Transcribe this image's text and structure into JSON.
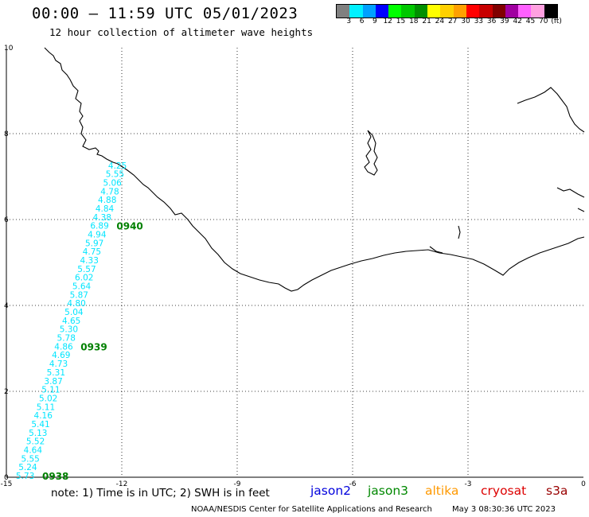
{
  "header": {
    "title": "00:00 – 11:59 UTC 05/01/2023",
    "subtitle": "12 hour collection of altimeter wave heights"
  },
  "legend": {
    "colors": [
      "#808080",
      "#00f0ff",
      "#00a0ff",
      "#0000ff",
      "#00ff00",
      "#00c800",
      "#009000",
      "#ffff00",
      "#ffd000",
      "#ffa000",
      "#ff0000",
      "#c80000",
      "#800000",
      "#a000a0",
      "#ff60ff",
      "#ffa0e0",
      "#000000"
    ],
    "ticks": [
      "3",
      "6",
      "9",
      "12",
      "15",
      "18",
      "21",
      "24",
      "27",
      "30",
      "33",
      "36",
      "39",
      "42",
      "45",
      "70",
      "(ft)"
    ]
  },
  "axes": {
    "x_ticks": [
      "-15",
      "-12",
      "-9",
      "-6",
      "-3",
      "0"
    ],
    "y_ticks": [
      "0",
      "2",
      "4",
      "6",
      "8",
      "10"
    ],
    "xlim": [
      -15,
      0
    ],
    "ylim": [
      0,
      10
    ]
  },
  "track": {
    "color": "#00e5ff",
    "values": [
      "5.73",
      "5.24",
      "5.55",
      "4.64",
      "5.52",
      "5.13",
      "5.41",
      "4.16",
      "5.11",
      "5.02",
      "5.11",
      "3.87",
      "5.31",
      "4.73",
      "4.69",
      "4.86",
      "5.78",
      "5.30",
      "4.65",
      "5.04",
      "4.80",
      "5.87",
      "5.64",
      "6.02",
      "5.57",
      "4.33",
      "4.75",
      "5.97",
      "4.94",
      "6.89",
      "4.38",
      "4.84",
      "4.88",
      "4.78",
      "5.06",
      "5.55",
      "4.25"
    ],
    "times": [
      {
        "label": "0938",
        "index": 0
      },
      {
        "label": "0939",
        "index": 15
      },
      {
        "label": "0940",
        "index": 29
      }
    ],
    "time_color": "#008000"
  },
  "note": "note:  1) Time is in UTC;  2) SWH is in feet",
  "satellites": [
    {
      "name": "jason2",
      "color": "#0000dd"
    },
    {
      "name": "jason3",
      "color": "#008800"
    },
    {
      "name": "altika",
      "color": "#ff9900"
    },
    {
      "name": "cryosat",
      "color": "#dd0000"
    },
    {
      "name": "s3a",
      "color": "#990000"
    }
  ],
  "footer": {
    "credit": "NOAA/NESDIS Center for Satellite Applications and Research",
    "timestamp": "May  3 08:30:36 UTC 2023"
  }
}
